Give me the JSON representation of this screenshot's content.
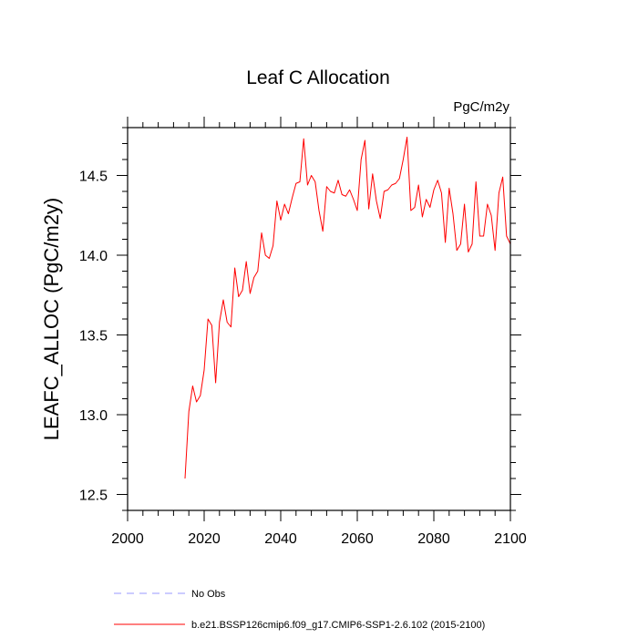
{
  "chart_data": {
    "type": "line",
    "title": "Leaf C Allocation",
    "units_label": "PgC/m2y",
    "xlabel": "",
    "ylabel": "LEAFC_ALLOC  (PgC/m2y)",
    "xlim": [
      2000,
      2100
    ],
    "ylim": [
      12.4,
      14.8
    ],
    "x_ticks": [
      2000,
      2020,
      2040,
      2060,
      2080,
      2100
    ],
    "x_tick_labels": [
      "2000",
      "2020",
      "2040",
      "2060",
      "2080",
      "2100"
    ],
    "y_ticks": [
      12.5,
      13.0,
      13.5,
      14.0,
      14.5
    ],
    "y_tick_labels": [
      "12.5",
      "13.0",
      "13.5",
      "14.0",
      "14.5"
    ],
    "x_minor_step": 4,
    "y_minor_step": 0.1,
    "grid": false,
    "legend_position": "bottom-left",
    "legend": [
      {
        "label": "No Obs",
        "color": "#9999ff",
        "dash": "dashed"
      },
      {
        "label": "b.e21.BSSP126cmip6.f09_g17.CMIP6-SSP1-2.6.102 (2015-2100)",
        "color": "#ff0000",
        "dash": "solid"
      }
    ],
    "series": [
      {
        "name": "b.e21.BSSP126cmip6.f09_g17.CMIP6-SSP1-2.6.102 (2015-2100)",
        "color": "#ff0000",
        "x": [
          2015,
          2016,
          2017,
          2018,
          2019,
          2020,
          2021,
          2022,
          2023,
          2024,
          2025,
          2026,
          2027,
          2028,
          2029,
          2030,
          2031,
          2032,
          2033,
          2034,
          2035,
          2036,
          2037,
          2038,
          2039,
          2040,
          2041,
          2042,
          2043,
          2044,
          2045,
          2046,
          2047,
          2048,
          2049,
          2050,
          2051,
          2052,
          2053,
          2054,
          2055,
          2056,
          2057,
          2058,
          2059,
          2060,
          2061,
          2062,
          2063,
          2064,
          2065,
          2066,
          2067,
          2068,
          2069,
          2070,
          2071,
          2072,
          2073,
          2074,
          2075,
          2076,
          2077,
          2078,
          2079,
          2080,
          2081,
          2082,
          2083,
          2084,
          2085,
          2086,
          2087,
          2088,
          2089,
          2090,
          2091,
          2092,
          2093,
          2094,
          2095,
          2096,
          2097,
          2098,
          2099,
          2100
        ],
        "values": [
          12.6,
          13.02,
          13.18,
          13.08,
          13.12,
          13.28,
          13.6,
          13.56,
          13.2,
          13.58,
          13.72,
          13.58,
          13.55,
          13.92,
          13.74,
          13.78,
          13.96,
          13.76,
          13.86,
          13.9,
          14.14,
          14.0,
          13.98,
          14.06,
          14.34,
          14.22,
          14.32,
          14.26,
          14.36,
          14.45,
          14.46,
          14.73,
          14.44,
          14.5,
          14.46,
          14.28,
          14.15,
          14.43,
          14.4,
          14.39,
          14.47,
          14.38,
          14.37,
          14.41,
          14.35,
          14.28,
          14.6,
          14.72,
          14.29,
          14.51,
          14.34,
          14.23,
          14.4,
          14.41,
          14.44,
          14.45,
          14.48,
          14.6,
          14.74,
          14.28,
          14.3,
          14.44,
          14.24,
          14.35,
          14.3,
          14.41,
          14.47,
          14.39,
          14.08,
          14.42,
          14.26,
          14.03,
          14.07,
          14.32,
          14.02,
          14.07,
          14.46,
          14.12,
          14.12,
          14.32,
          14.25,
          14.03,
          14.39,
          14.49,
          14.12,
          14.07
        ]
      }
    ]
  }
}
